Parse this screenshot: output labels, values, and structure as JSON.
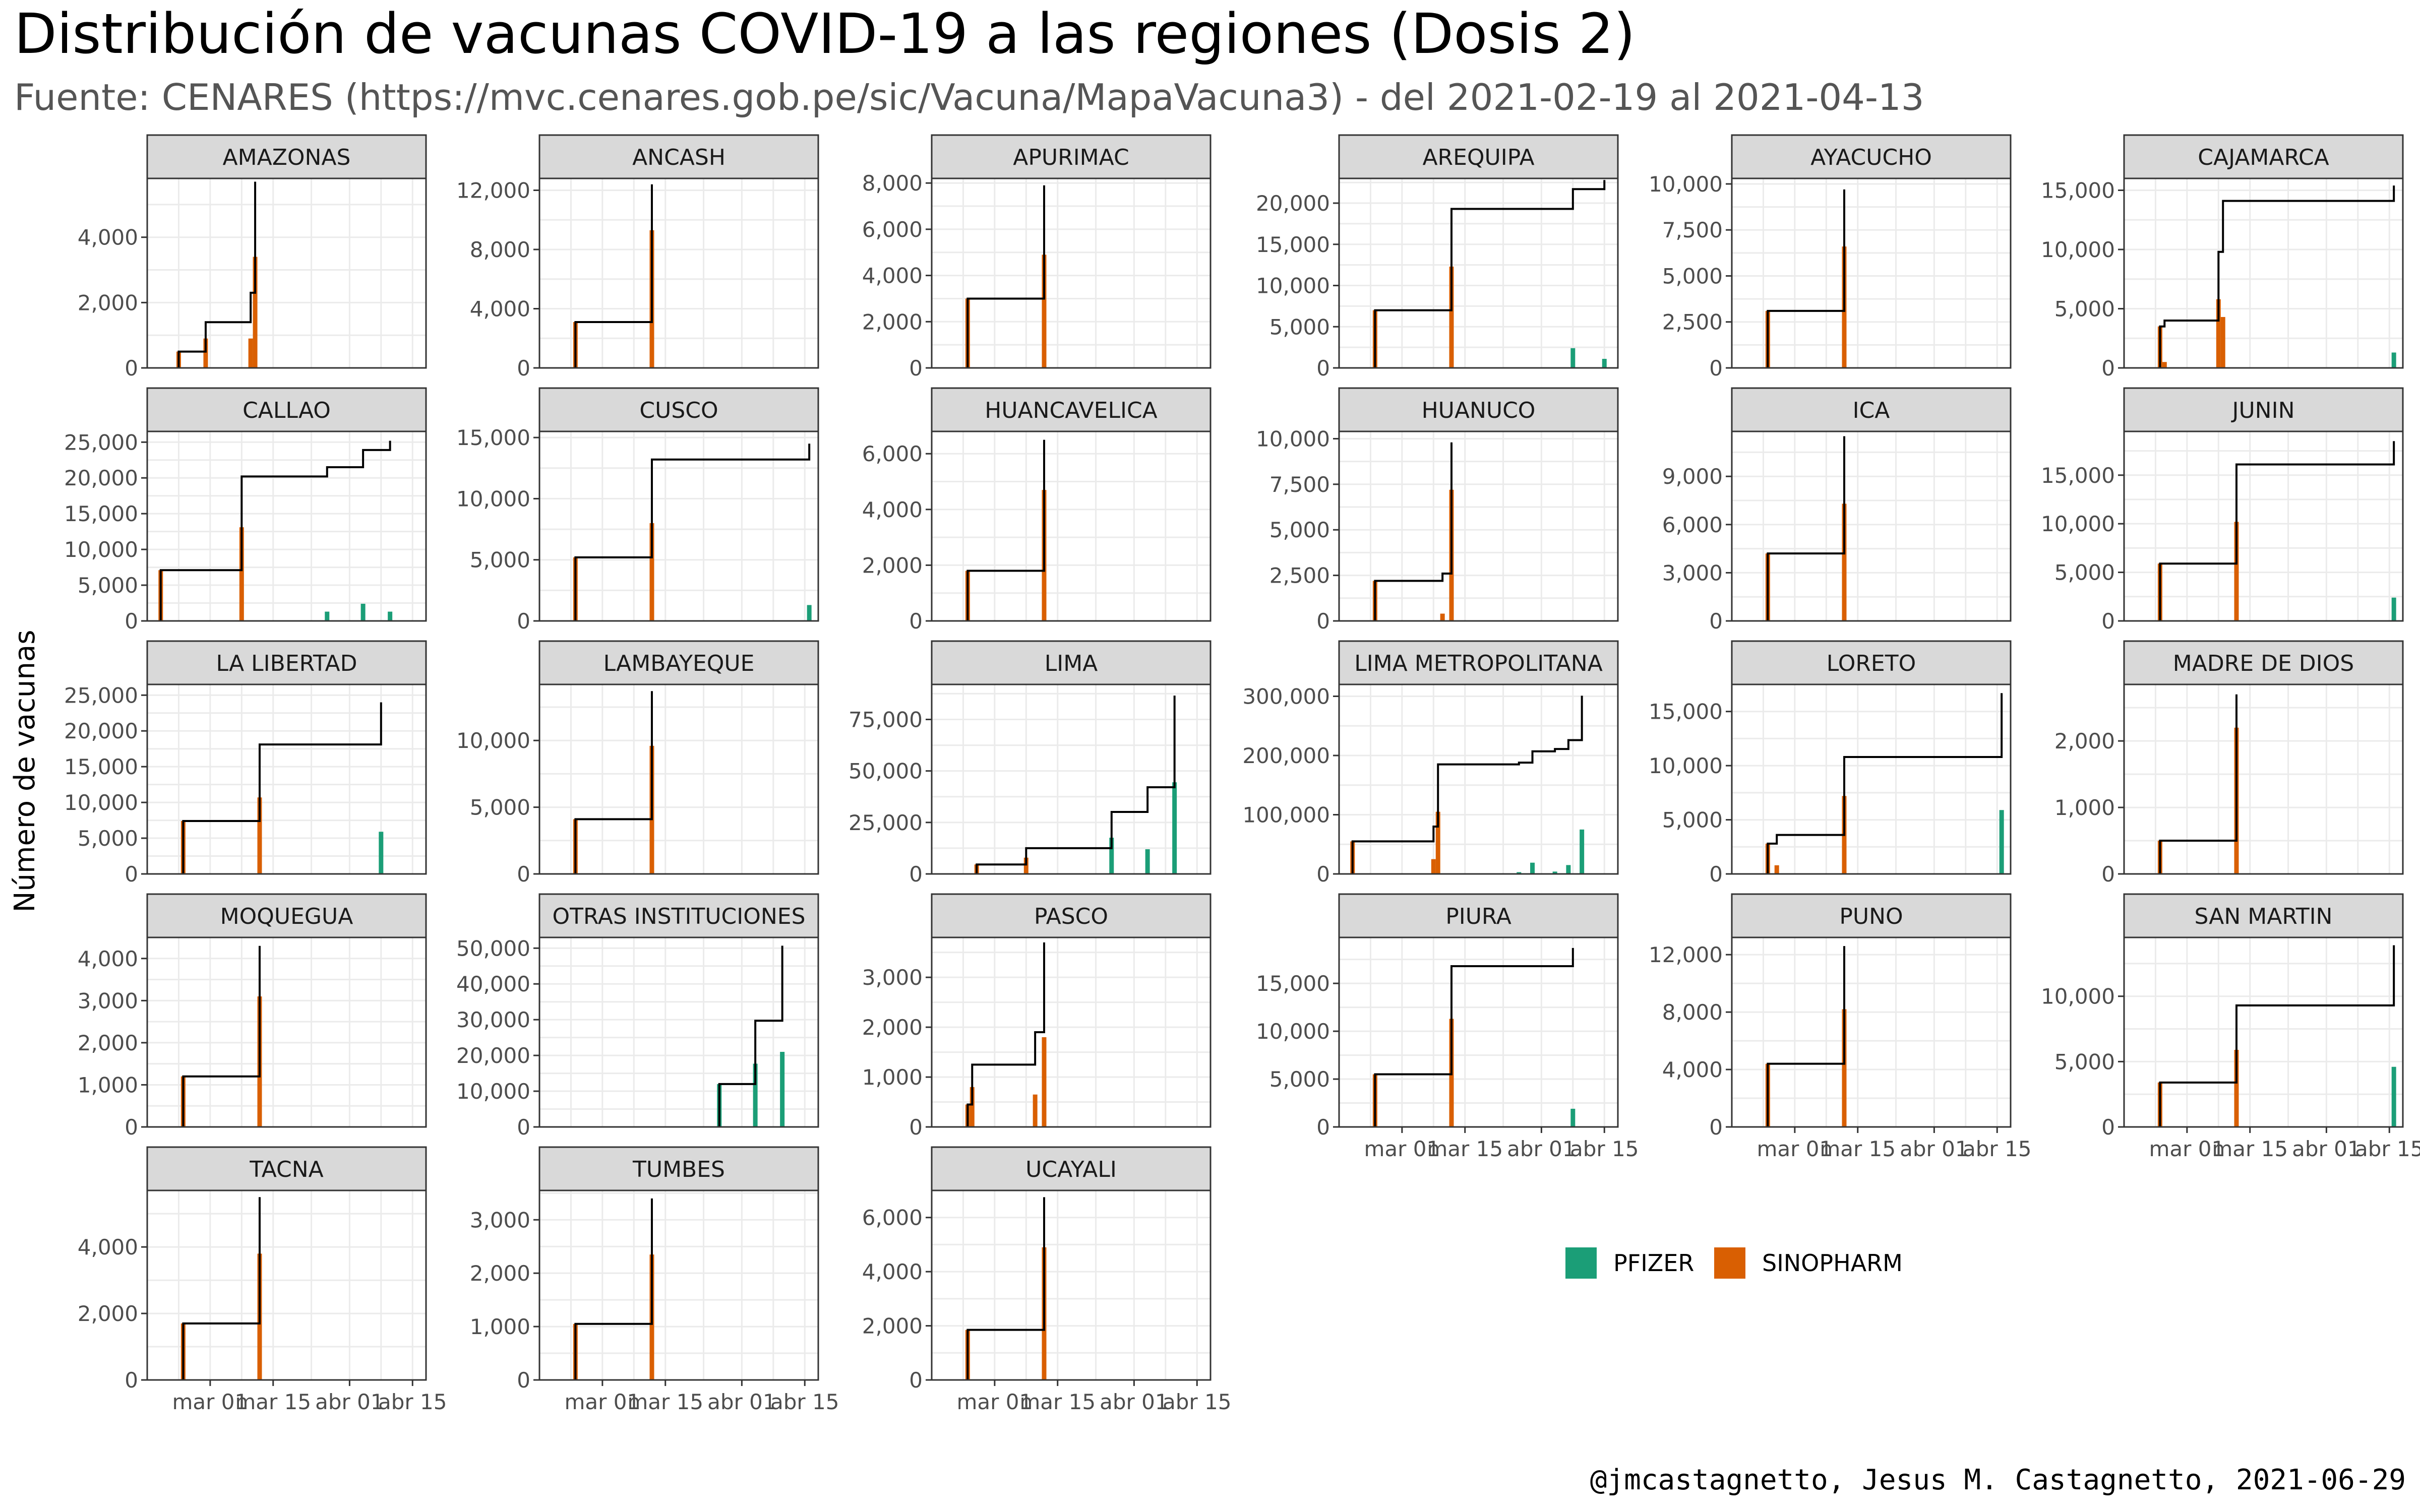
{
  "title": "Distribución de vacunas COVID-19 a las regiones (Dosis 2)",
  "subtitle": "Fuente: CENARES (https://mvc.cenares.gob.pe/sic/Vacuna/MapaVacuna3) - del 2021-02-19 al 2021-04-13",
  "caption": "@jmcastagnetto, Jesus M. Castagnetto, 2021-06-29",
  "ylabel": "Número de vacunas",
  "colors": {
    "PFIZER": "#1b9e77",
    "SINOPHARM": "#d95f02",
    "cumulative": "#000000",
    "strip": "#d9d9d9",
    "grid": "#ebebeb"
  },
  "chart_data": {
    "type": "bar",
    "x_range": [
      "2021-02-15",
      "2021-04-18"
    ],
    "x_ticks": [
      {
        "date": "2021-03-01",
        "label": "mar 01"
      },
      {
        "date": "2021-03-15",
        "label": "mar 15"
      },
      {
        "date": "2021-04-01",
        "label": "abr 01"
      },
      {
        "date": "2021-04-15",
        "label": "abr 15"
      }
    ],
    "legend": {
      "position": "bottom-right",
      "items": [
        "PFIZER",
        "SINOPHARM"
      ]
    },
    "panels": [
      {
        "name": "AMAZONAS",
        "ymax": 5800,
        "yticks": [
          0,
          2000,
          4000
        ],
        "bars": [
          [
            "SINOPHARM",
            "2021-02-22",
            500
          ],
          [
            "SINOPHARM",
            "2021-02-28",
            900
          ],
          [
            "SINOPHARM",
            "2021-03-10",
            900
          ],
          [
            "SINOPHARM",
            "2021-03-11",
            3400
          ]
        ]
      },
      {
        "name": "ANCASH",
        "ymax": 12800,
        "yticks": [
          0,
          4000,
          8000,
          12000
        ],
        "bars": [
          [
            "SINOPHARM",
            "2021-02-23",
            3100
          ],
          [
            "SINOPHARM",
            "2021-03-12",
            9300
          ]
        ]
      },
      {
        "name": "APURIMAC",
        "ymax": 8200,
        "yticks": [
          0,
          2000,
          4000,
          6000,
          8000
        ],
        "bars": [
          [
            "SINOPHARM",
            "2021-02-23",
            3000
          ],
          [
            "SINOPHARM",
            "2021-03-12",
            4900
          ]
        ]
      },
      {
        "name": "AREQUIPA",
        "ymax": 23000,
        "yticks": [
          0,
          5000,
          10000,
          15000,
          20000
        ],
        "bars": [
          [
            "SINOPHARM",
            "2021-02-23",
            7000
          ],
          [
            "SINOPHARM",
            "2021-03-12",
            12300
          ],
          [
            "PFIZER",
            "2021-04-08",
            2400
          ],
          [
            "PFIZER",
            "2021-04-15",
            1100
          ]
        ]
      },
      {
        "name": "AYACUCHO",
        "ymax": 10300,
        "yticks": [
          0,
          2500,
          5000,
          7500,
          10000
        ],
        "bars": [
          [
            "SINOPHARM",
            "2021-02-23",
            3100
          ],
          [
            "SINOPHARM",
            "2021-03-12",
            6600
          ]
        ]
      },
      {
        "name": "CAJAMARCA",
        "ymax": 16000,
        "yticks": [
          0,
          5000,
          10000,
          15000
        ],
        "bars": [
          [
            "SINOPHARM",
            "2021-02-23",
            3500
          ],
          [
            "SINOPHARM",
            "2021-02-24",
            500
          ],
          [
            "SINOPHARM",
            "2021-03-08",
            5800
          ],
          [
            "SINOPHARM",
            "2021-03-09",
            4300
          ],
          [
            "PFIZER",
            "2021-04-16",
            1300
          ]
        ]
      },
      {
        "name": "CALLAO",
        "ymax": 26500,
        "yticks": [
          0,
          5000,
          10000,
          15000,
          20000,
          25000
        ],
        "bars": [
          [
            "SINOPHARM",
            "2021-02-18",
            7100
          ],
          [
            "SINOPHARM",
            "2021-03-08",
            13100
          ],
          [
            "PFIZER",
            "2021-03-27",
            1300
          ],
          [
            "PFIZER",
            "2021-04-04",
            2400
          ],
          [
            "PFIZER",
            "2021-04-10",
            1300
          ]
        ]
      },
      {
        "name": "CUSCO",
        "ymax": 15500,
        "yticks": [
          0,
          5000,
          10000,
          15000
        ],
        "bars": [
          [
            "SINOPHARM",
            "2021-02-23",
            5200
          ],
          [
            "SINOPHARM",
            "2021-03-12",
            8000
          ],
          [
            "PFIZER",
            "2021-04-16",
            1300
          ]
        ]
      },
      {
        "name": "HUANCAVELICA",
        "ymax": 6800,
        "yticks": [
          0,
          2000,
          4000,
          6000
        ],
        "bars": [
          [
            "SINOPHARM",
            "2021-02-23",
            1800
          ],
          [
            "SINOPHARM",
            "2021-03-12",
            4700
          ]
        ]
      },
      {
        "name": "HUANUCO",
        "ymax": 10400,
        "yticks": [
          0,
          2500,
          5000,
          7500,
          10000
        ],
        "bars": [
          [
            "SINOPHARM",
            "2021-02-23",
            2200
          ],
          [
            "SINOPHARM",
            "2021-03-10",
            400
          ],
          [
            "SINOPHARM",
            "2021-03-12",
            7200
          ]
        ]
      },
      {
        "name": "ICA",
        "ymax": 11800,
        "yticks": [
          0,
          3000,
          6000,
          9000
        ],
        "bars": [
          [
            "SINOPHARM",
            "2021-02-23",
            4200
          ],
          [
            "SINOPHARM",
            "2021-03-12",
            7300
          ]
        ]
      },
      {
        "name": "JUNIN",
        "ymax": 19500,
        "yticks": [
          0,
          5000,
          10000,
          15000
        ],
        "bars": [
          [
            "SINOPHARM",
            "2021-02-23",
            5900
          ],
          [
            "SINOPHARM",
            "2021-03-12",
            10200
          ],
          [
            "PFIZER",
            "2021-04-16",
            2400
          ]
        ]
      },
      {
        "name": "LA LIBERTAD",
        "ymax": 26500,
        "yticks": [
          0,
          5000,
          10000,
          15000,
          20000,
          25000
        ],
        "bars": [
          [
            "SINOPHARM",
            "2021-02-23",
            7400
          ],
          [
            "SINOPHARM",
            "2021-03-12",
            10700
          ],
          [
            "PFIZER",
            "2021-04-08",
            5900
          ]
        ]
      },
      {
        "name": "LAMBAYEQUE",
        "ymax": 14200,
        "yticks": [
          0,
          5000,
          10000
        ],
        "bars": [
          [
            "SINOPHARM",
            "2021-02-23",
            4100
          ],
          [
            "SINOPHARM",
            "2021-03-12",
            9600
          ]
        ]
      },
      {
        "name": "LIMA",
        "ymax": 92000,
        "yticks": [
          0,
          25000,
          50000,
          75000
        ],
        "bars": [
          [
            "SINOPHARM",
            "2021-02-25",
            4600
          ],
          [
            "SINOPHARM",
            "2021-03-08",
            7900
          ],
          [
            "PFIZER",
            "2021-03-27",
            17600
          ],
          [
            "PFIZER",
            "2021-04-04",
            12000
          ],
          [
            "PFIZER",
            "2021-04-10",
            44500
          ]
        ]
      },
      {
        "name": "LIMA METROPOLITANA",
        "ymax": 320000,
        "yticks": [
          0,
          100000,
          200000,
          300000
        ],
        "bars": [
          [
            "SINOPHARM",
            "2021-02-18",
            55000
          ],
          [
            "SINOPHARM",
            "2021-03-08",
            25000
          ],
          [
            "SINOPHARM",
            "2021-03-09",
            105000
          ],
          [
            "PFIZER",
            "2021-03-27",
            3000
          ],
          [
            "PFIZER",
            "2021-03-30",
            19000
          ],
          [
            "PFIZER",
            "2021-04-04",
            4000
          ],
          [
            "PFIZER",
            "2021-04-07",
            15000
          ],
          [
            "PFIZER",
            "2021-04-10",
            75000
          ]
        ]
      },
      {
        "name": "LORETO",
        "ymax": 17500,
        "yticks": [
          0,
          5000,
          10000,
          15000
        ],
        "bars": [
          [
            "SINOPHARM",
            "2021-02-23",
            2800
          ],
          [
            "SINOPHARM",
            "2021-02-25",
            800
          ],
          [
            "SINOPHARM",
            "2021-03-12",
            7200
          ],
          [
            "PFIZER",
            "2021-04-16",
            5900
          ]
        ]
      },
      {
        "name": "MADRE DE DIOS",
        "ymax": 2850,
        "yticks": [
          0,
          1000,
          2000
        ],
        "bars": [
          [
            "SINOPHARM",
            "2021-02-23",
            500
          ],
          [
            "SINOPHARM",
            "2021-03-12",
            2200
          ]
        ]
      },
      {
        "name": "MOQUEGUA",
        "ymax": 4500,
        "yticks": [
          0,
          1000,
          2000,
          3000,
          4000
        ],
        "bars": [
          [
            "SINOPHARM",
            "2021-02-23",
            1200
          ],
          [
            "SINOPHARM",
            "2021-03-12",
            3100
          ]
        ]
      },
      {
        "name": "OTRAS INSTITUCIONES",
        "ymax": 53000,
        "yticks": [
          0,
          10000,
          20000,
          30000,
          40000,
          50000
        ],
        "bars": [
          [
            "PFIZER",
            "2021-03-27",
            12000
          ],
          [
            "PFIZER",
            "2021-04-04",
            17700
          ],
          [
            "PFIZER",
            "2021-04-10",
            21000
          ]
        ]
      },
      {
        "name": "PASCO",
        "ymax": 3800,
        "yticks": [
          0,
          1000,
          2000,
          3000
        ],
        "bars": [
          [
            "SINOPHARM",
            "2021-02-23",
            450
          ],
          [
            "SINOPHARM",
            "2021-02-24",
            800
          ],
          [
            "SINOPHARM",
            "2021-03-10",
            650
          ],
          [
            "SINOPHARM",
            "2021-03-12",
            1800
          ]
        ]
      },
      {
        "name": "PIURA",
        "ymax": 19800,
        "yticks": [
          0,
          5000,
          10000,
          15000
        ],
        "bars": [
          [
            "SINOPHARM",
            "2021-02-23",
            5500
          ],
          [
            "SINOPHARM",
            "2021-03-12",
            11300
          ],
          [
            "PFIZER",
            "2021-04-08",
            1900
          ]
        ]
      },
      {
        "name": "PUNO",
        "ymax": 13200,
        "yticks": [
          0,
          4000,
          8000,
          12000
        ],
        "bars": [
          [
            "SINOPHARM",
            "2021-02-23",
            4400
          ],
          [
            "SINOPHARM",
            "2021-03-12",
            8200
          ]
        ]
      },
      {
        "name": "SAN MARTIN",
        "ymax": 14500,
        "yticks": [
          0,
          5000,
          10000
        ],
        "bars": [
          [
            "SINOPHARM",
            "2021-02-23",
            3400
          ],
          [
            "SINOPHARM",
            "2021-03-12",
            5900
          ],
          [
            "PFIZER",
            "2021-04-16",
            4600
          ]
        ]
      },
      {
        "name": "TACNA",
        "ymax": 5700,
        "yticks": [
          0,
          2000,
          4000
        ],
        "bars": [
          [
            "SINOPHARM",
            "2021-02-23",
            1700
          ],
          [
            "SINOPHARM",
            "2021-03-12",
            3800
          ]
        ]
      },
      {
        "name": "TUMBES",
        "ymax": 3550,
        "yticks": [
          0,
          1000,
          2000,
          3000
        ],
        "bars": [
          [
            "SINOPHARM",
            "2021-02-23",
            1050
          ],
          [
            "SINOPHARM",
            "2021-03-12",
            2350
          ]
        ]
      },
      {
        "name": "UCAYALI",
        "ymax": 7000,
        "yticks": [
          0,
          2000,
          4000,
          6000
        ],
        "bars": [
          [
            "SINOPHARM",
            "2021-02-23",
            1850
          ],
          [
            "SINOPHARM",
            "2021-03-12",
            4900
          ]
        ]
      }
    ]
  }
}
